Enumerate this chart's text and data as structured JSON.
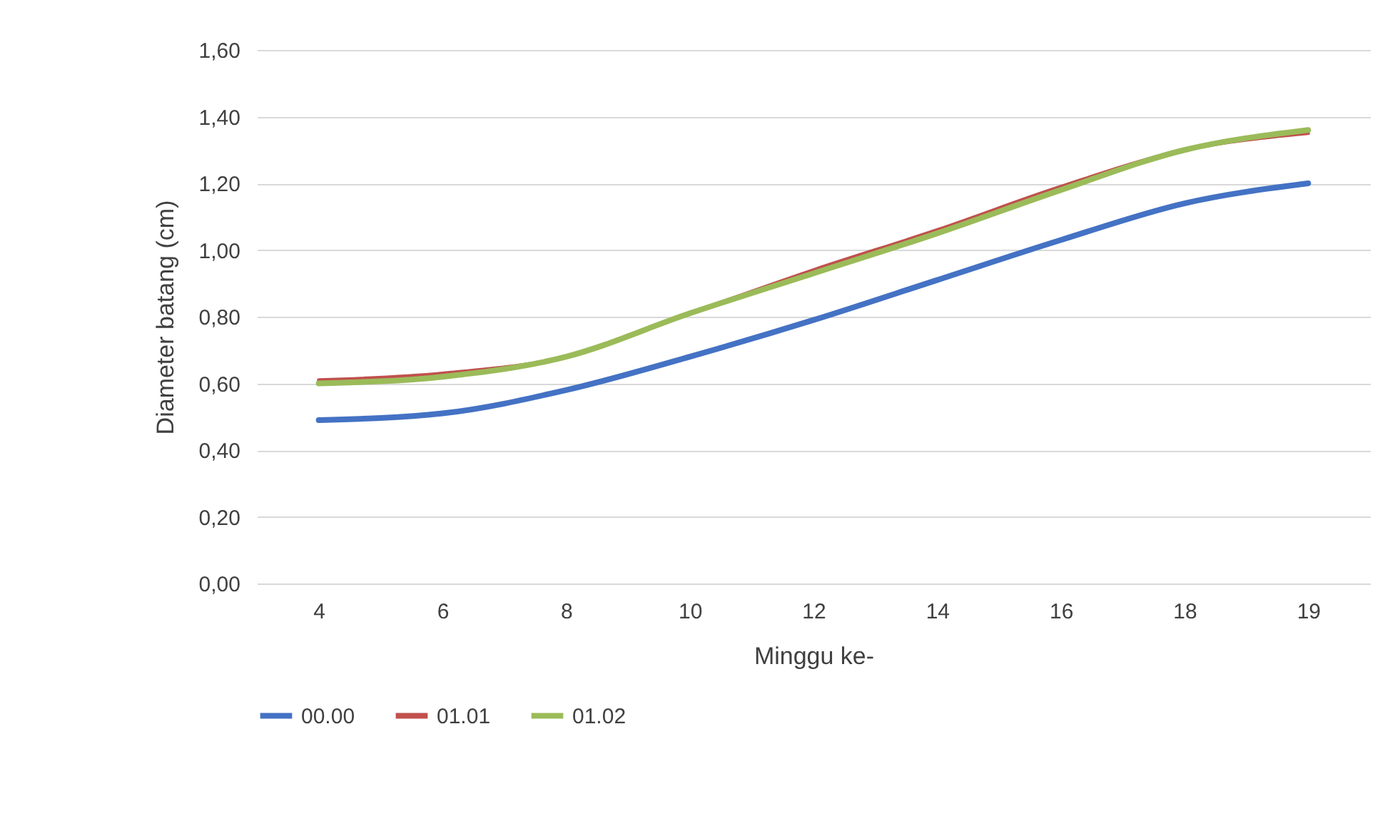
{
  "chart_data": {
    "type": "line",
    "xlabel": "Minggu ke-",
    "ylabel": "Diameter batang (cm)",
    "categories": [
      "4",
      "6",
      "8",
      "10",
      "12",
      "14",
      "16",
      "18",
      "19"
    ],
    "series": [
      {
        "name": "00.00",
        "color": "#4472c4",
        "values": [
          0.49,
          0.51,
          0.58,
          0.68,
          0.79,
          0.91,
          1.03,
          1.14,
          1.2
        ]
      },
      {
        "name": "01.01",
        "color": "#c0504d",
        "values": [
          0.61,
          0.63,
          0.68,
          0.81,
          0.94,
          1.06,
          1.19,
          1.3,
          1.35
        ]
      },
      {
        "name": "01.02",
        "color": "#9bbb59",
        "values": [
          0.6,
          0.62,
          0.68,
          0.81,
          0.93,
          1.05,
          1.18,
          1.3,
          1.36
        ]
      }
    ],
    "ylim": [
      0,
      1.6
    ],
    "yticks": [
      {
        "value": 0,
        "label": "0,00"
      },
      {
        "value": 0.2,
        "label": "0,20"
      },
      {
        "value": 0.4,
        "label": "0,40"
      },
      {
        "value": 0.6,
        "label": "0,60"
      },
      {
        "value": 0.8,
        "label": "0,80"
      },
      {
        "value": 1.0,
        "label": "1,00"
      },
      {
        "value": 1.2,
        "label": "1,20"
      },
      {
        "value": 1.4,
        "label": "1,40"
      },
      {
        "value": 1.6,
        "label": "1,60"
      }
    ],
    "grid": "y",
    "legend": "bottom",
    "marker": "none",
    "line_style": "solid"
  }
}
